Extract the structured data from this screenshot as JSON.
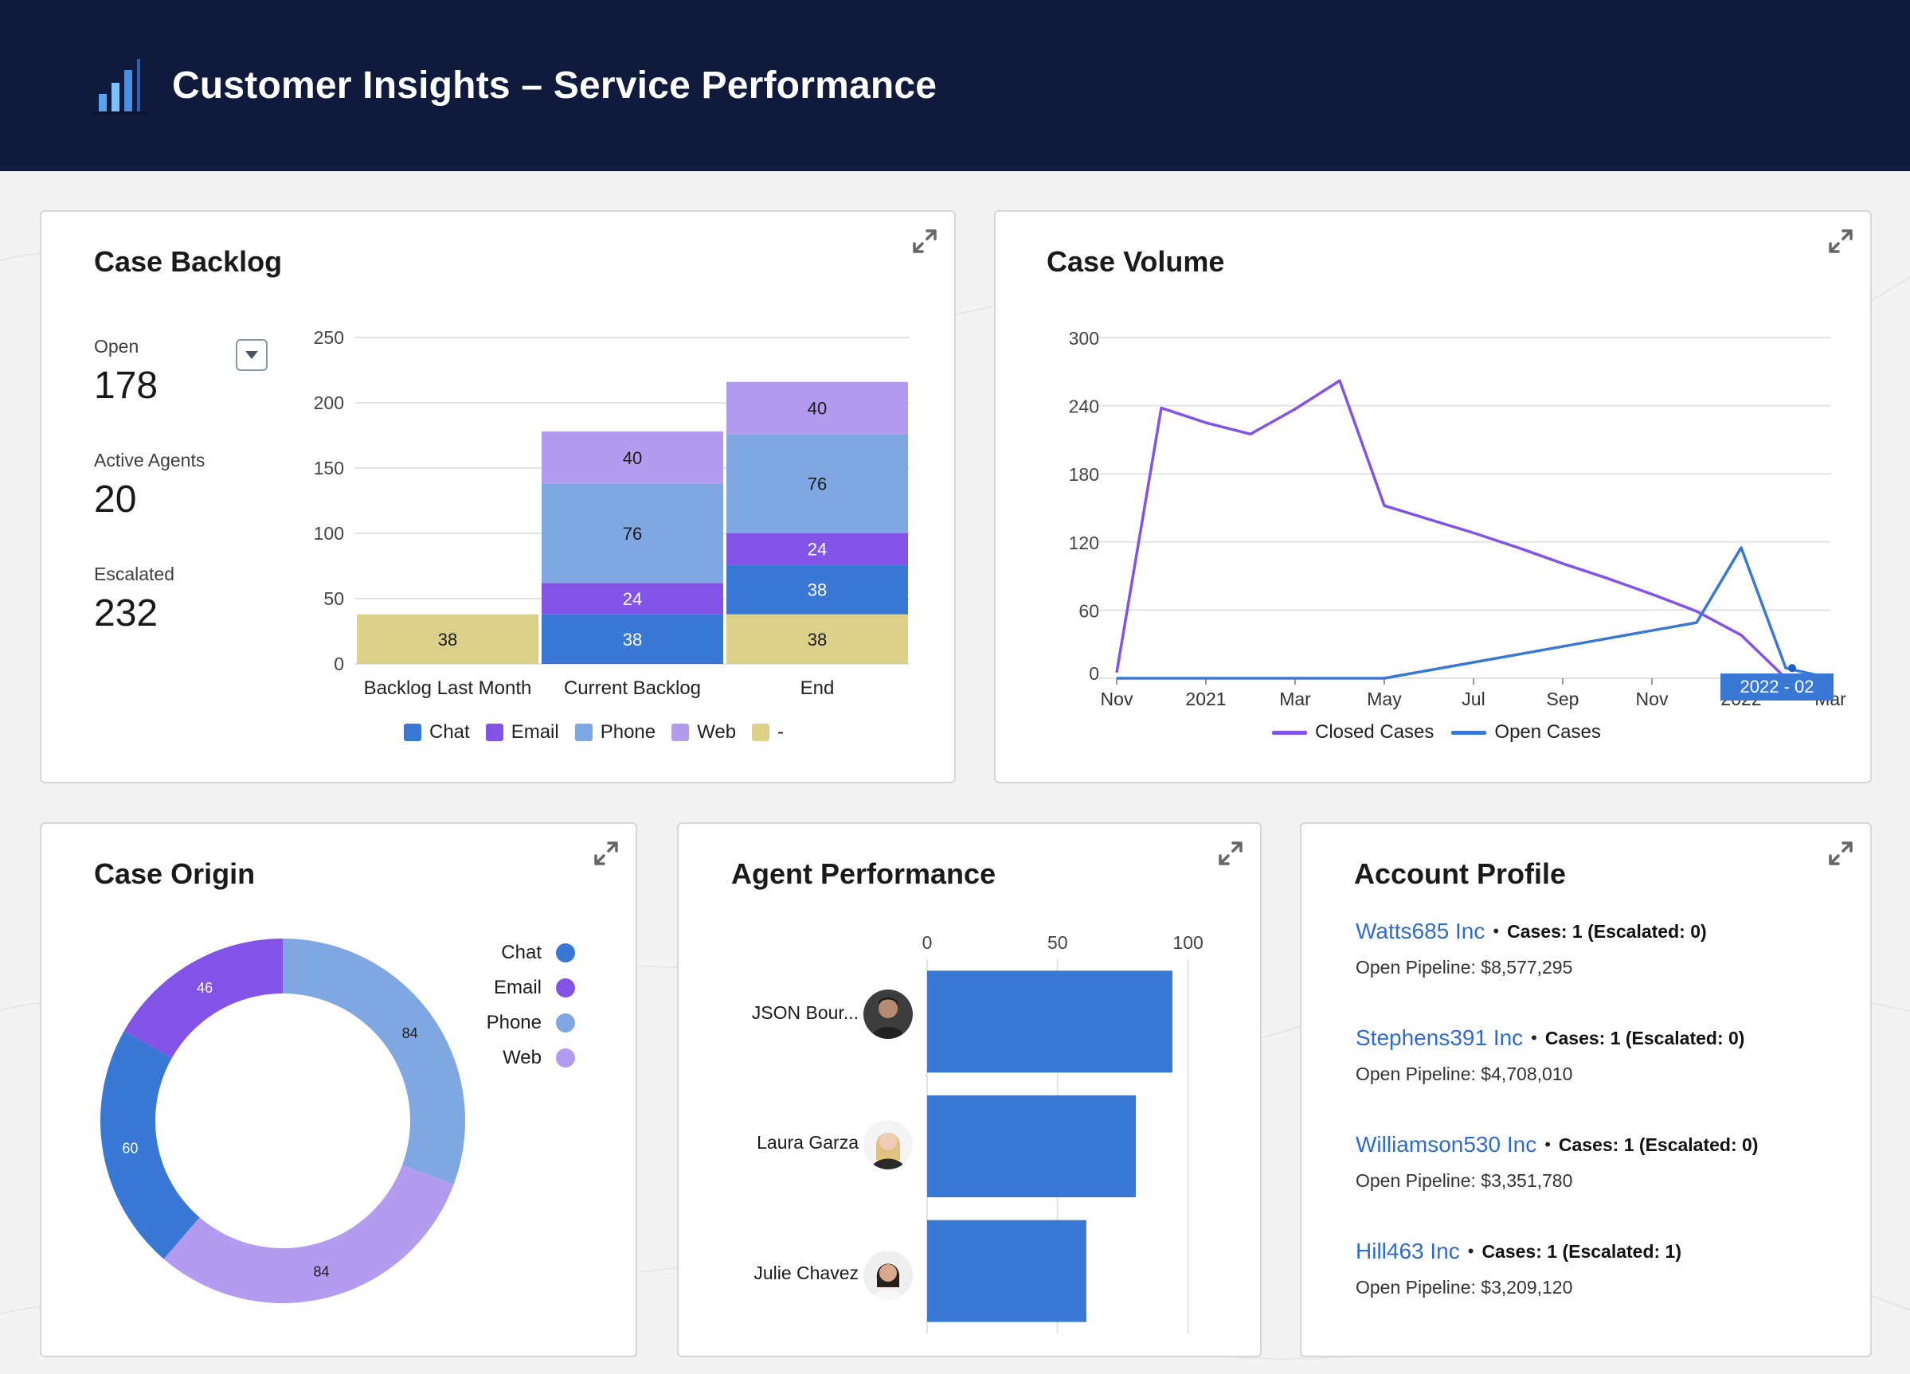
{
  "header": {
    "title": "Customer Insights – Service Performance",
    "logo_icon": "bar-chart-logo-icon"
  },
  "colors": {
    "chat": "#3a78d6",
    "email": "#8352e6",
    "phone": "#7fa8e2",
    "web": "#b39bf0",
    "other": "#ddd08a",
    "closed": "#8352e6",
    "open": "#3a78d6",
    "header_bg": "#0f1a3c",
    "link": "#2f6bcd"
  },
  "backlog": {
    "title": "Case Backlog",
    "kpis": [
      {
        "label": "Open",
        "value": "178"
      },
      {
        "label": "Active Agents",
        "value": "20"
      },
      {
        "label": "Escalated",
        "value": "232"
      }
    ],
    "legend": [
      {
        "label": "Chat",
        "color": "#3a78d6"
      },
      {
        "label": "Email",
        "color": "#8352e6"
      },
      {
        "label": "Phone",
        "color": "#7fa8e2"
      },
      {
        "label": "Web",
        "color": "#b39bf0"
      },
      {
        "label": "-",
        "color": "#ddd08a"
      }
    ]
  },
  "volume": {
    "title": "Case Volume",
    "legend": [
      {
        "label": "Closed Cases",
        "color": "#8352e6"
      },
      {
        "label": "Open Cases",
        "color": "#3a78d6"
      }
    ],
    "tooltip": "2022 - 02"
  },
  "origin": {
    "title": "Case Origin",
    "legend": [
      {
        "label": "Chat",
        "color": "#3a78d6"
      },
      {
        "label": "Email",
        "color": "#8352e6"
      },
      {
        "label": "Phone",
        "color": "#7fa8e2"
      },
      {
        "label": "Web",
        "color": "#b39bf0"
      }
    ]
  },
  "agents": {
    "title": "Agent Performance",
    "list": [
      {
        "name": "JSON Bour...",
        "avatar": "avatar-man-icon"
      },
      {
        "name": "Laura Garza",
        "avatar": "avatar-woman-blonde-icon"
      },
      {
        "name": "Julie Chavez",
        "avatar": "avatar-woman-dark-icon"
      }
    ]
  },
  "accounts": {
    "title": "Account Profile",
    "list": [
      {
        "name": "Watts685 Inc",
        "cases": "Cases: 1 (Escalated: 0)",
        "pipeline": "Open Pipeline: $8,577,295"
      },
      {
        "name": "Stephens391 Inc",
        "cases": "Cases: 1 (Escalated: 0)",
        "pipeline": "Open Pipeline: $4,708,010"
      },
      {
        "name": "Williamson530 Inc",
        "cases": "Cases: 1 (Escalated: 0)",
        "pipeline": "Open Pipeline: $3,351,780"
      },
      {
        "name": "Hill463 Inc",
        "cases": "Cases: 1 (Escalated: 1)",
        "pipeline": "Open Pipeline: $3,209,120"
      }
    ]
  },
  "chart_data": [
    {
      "id": "backlog",
      "type": "bar",
      "stacked": true,
      "title": "",
      "categories": [
        "Backlog Last Month",
        "Current Backlog",
        "End"
      ],
      "series": [
        {
          "name": "-",
          "values": [
            38,
            0,
            38
          ],
          "color": "#ddd08a"
        },
        {
          "name": "Chat",
          "values": [
            0,
            38,
            38
          ],
          "color": "#3a78d6"
        },
        {
          "name": "Email",
          "values": [
            0,
            24,
            24
          ],
          "color": "#8352e6"
        },
        {
          "name": "Phone",
          "values": [
            0,
            76,
            76
          ],
          "color": "#7fa8e2"
        },
        {
          "name": "Web",
          "values": [
            0,
            40,
            40
          ],
          "color": "#b39bf0"
        }
      ],
      "ylim": [
        0,
        250
      ],
      "yticks": [
        0,
        50,
        100,
        150,
        200,
        250
      ],
      "grid": true,
      "legend_position": "bottom"
    },
    {
      "id": "volume",
      "type": "line",
      "title": "",
      "x": [
        "2020-11",
        "2020-12",
        "2021-01",
        "2021-02",
        "2021-03",
        "2021-04",
        "2021-05",
        "2021-06",
        "2021-07",
        "2021-08",
        "2021-09",
        "2021-10",
        "2021-11",
        "2021-12",
        "2022-01",
        "2022-02",
        "2022-03"
      ],
      "xticks": [
        "Nov",
        "2021",
        "Mar",
        "May",
        "Jul",
        "Sep",
        "Nov",
        "2022",
        "Mar"
      ],
      "series": [
        {
          "name": "Closed Cases",
          "color": "#8352e6",
          "values": [
            5,
            238,
            225,
            215,
            237,
            262,
            152,
            140,
            128,
            115,
            101,
            88,
            74,
            59,
            38,
            0,
            0
          ]
        },
        {
          "name": "Open Cases",
          "color": "#3a78d6",
          "values": [
            0,
            0,
            0,
            0,
            0,
            0,
            0,
            7,
            14,
            21,
            28,
            35,
            42,
            49,
            115,
            9,
            0
          ]
        }
      ],
      "ylim": [
        0,
        300
      ],
      "yticks": [
        0,
        60,
        120,
        180,
        240,
        300
      ],
      "grid": true,
      "legend_position": "bottom"
    },
    {
      "id": "origin",
      "type": "pie",
      "donut": true,
      "title": "",
      "categories": [
        "Phone",
        "Web",
        "Chat",
        "Email"
      ],
      "values": [
        84,
        84,
        60,
        46
      ],
      "colors": [
        "#7fa8e2",
        "#b39bf0",
        "#3a78d6",
        "#8352e6"
      ],
      "legend_position": "top-right"
    },
    {
      "id": "agents",
      "type": "bar",
      "orientation": "horizontal",
      "title": "",
      "categories": [
        "JSON Bour...",
        "Laura Garza",
        "Julie Chavez"
      ],
      "values": [
        94,
        80,
        61
      ],
      "xlim": [
        0,
        105
      ],
      "xticks": [
        0,
        50,
        100
      ],
      "color": "#3a78d6",
      "grid": true
    }
  ]
}
